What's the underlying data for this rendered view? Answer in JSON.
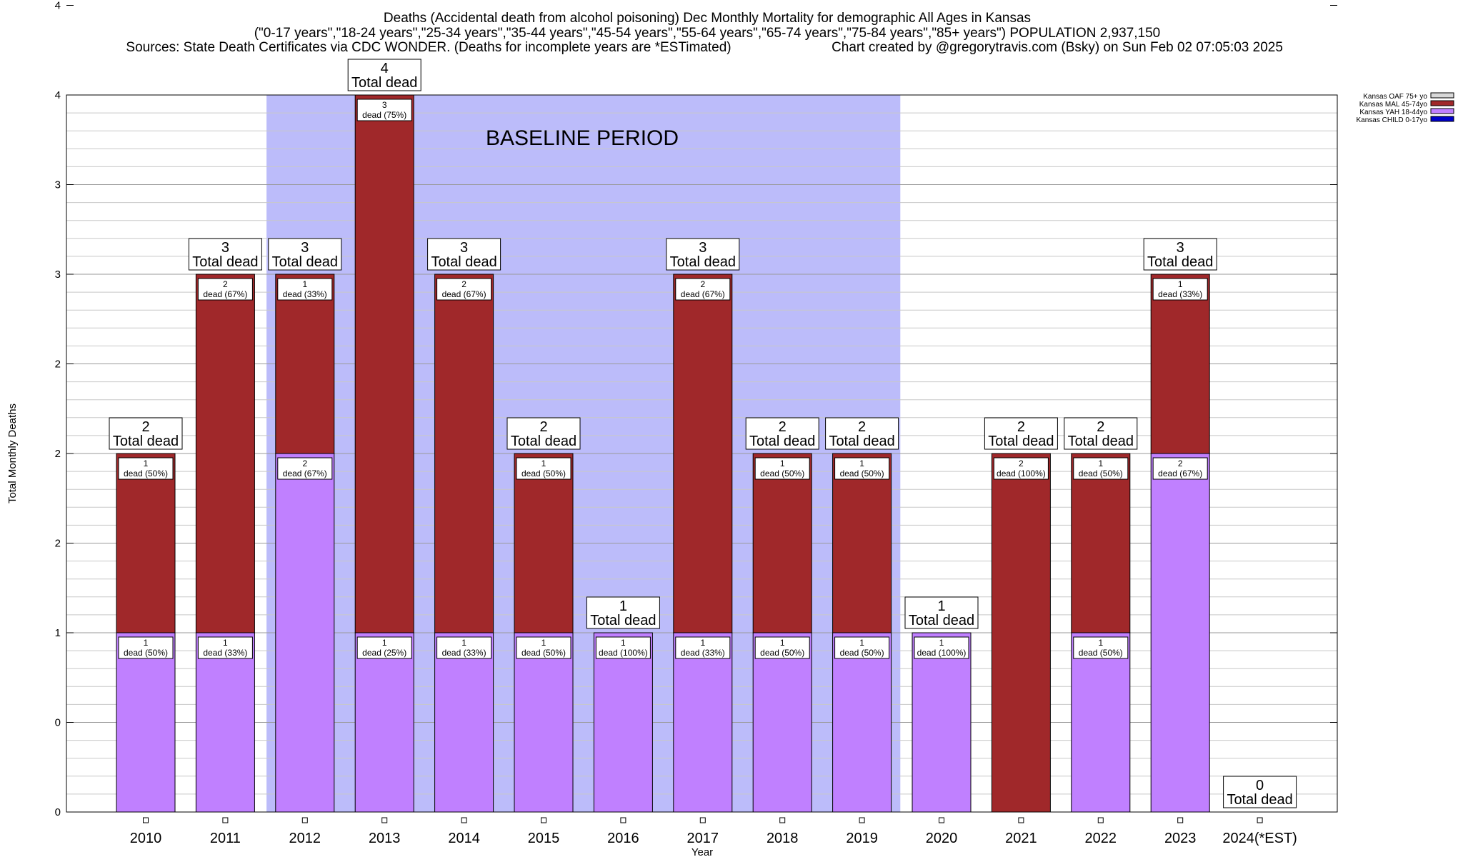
{
  "header": {
    "line1": "Deaths (Accidental death from alcohol poisoning) Dec Monthly Mortality for demographic All Ages in Kansas",
    "line2": "(\"0-17 years\",\"18-24 years\",\"25-34 years\",\"35-44 years\",\"45-54 years\",\"55-64 years\",\"65-74 years\",\"75-84 years\",\"85+ years\") POPULATION 2,937,150",
    "line3a": "Sources: State Death Certificates via CDC WONDER. (Deaths for incomplete years are *ESTimated)",
    "line3b": "Chart created by @gregorytravis.com (Bsky) on Sun Feb 02 07:05:03 2025"
  },
  "chart_data": {
    "type": "bar",
    "stacked": true,
    "xlabel": "Year",
    "ylabel": "Total Monthly Deaths",
    "ylim": [
      0,
      4
    ],
    "y_tick_labels": [
      "0",
      "0",
      "1",
      "2",
      "2",
      "2",
      "3",
      "3",
      "4",
      "4"
    ],
    "grid": true,
    "legend_position": "top-right",
    "baseline_label": "BASELINE PERIOD",
    "baseline_range": [
      "2012",
      "2019"
    ],
    "categories": [
      "2010",
      "2011",
      "2012",
      "2013",
      "2014",
      "2015",
      "2016",
      "2017",
      "2018",
      "2019",
      "2020",
      "2021",
      "2022",
      "2023",
      "2024(*EST)"
    ],
    "series": [
      {
        "name": "Kansas CHILD 0-17yo",
        "color": "#0000c8",
        "values": [
          0,
          0,
          0,
          0,
          0,
          0,
          0,
          0,
          0,
          0,
          0,
          0,
          0,
          0,
          0
        ]
      },
      {
        "name": "Kansas YAH 18-44yo",
        "color": "#c080ff",
        "values": [
          1,
          1,
          2,
          1,
          1,
          1,
          1,
          1,
          1,
          1,
          1,
          0,
          1,
          2,
          0
        ],
        "labels": [
          "1|dead (50%)",
          "1|dead (33%)",
          "2|dead (67%)",
          "1|dead (25%)",
          "1|dead (33%)",
          "1|dead (50%)",
          "1|dead (100%)",
          "1|dead (33%)",
          "1|dead (50%)",
          "1|dead (50%)",
          "1|dead (100%)",
          "",
          "1|dead (50%)",
          "2|dead (67%)",
          ""
        ]
      },
      {
        "name": "Kansas MAL 45-74yo",
        "color": "#a0282a",
        "values": [
          1,
          2,
          1,
          3,
          2,
          1,
          0,
          2,
          1,
          1,
          0,
          2,
          1,
          1,
          0
        ],
        "labels": [
          "1|dead (50%)",
          "2|dead (67%)",
          "1|dead (33%)",
          "3|dead (75%)",
          "2|dead (67%)",
          "1|dead (50%)",
          "",
          "2|dead (67%)",
          "1|dead (50%)",
          "1|dead (50%)",
          "",
          "2|dead (100%)",
          "1|dead (50%)",
          "1|dead (33%)",
          ""
        ]
      },
      {
        "name": "Kansas OAF 75+ yo",
        "color": "#d8d8d8",
        "values": [
          0,
          0,
          0,
          0,
          0,
          0,
          0,
          0,
          0,
          0,
          0,
          0,
          0,
          0,
          0
        ]
      }
    ],
    "totals": [
      2,
      3,
      3,
      4,
      3,
      2,
      1,
      3,
      2,
      2,
      1,
      2,
      2,
      3,
      0
    ],
    "total_label": "Total dead"
  }
}
